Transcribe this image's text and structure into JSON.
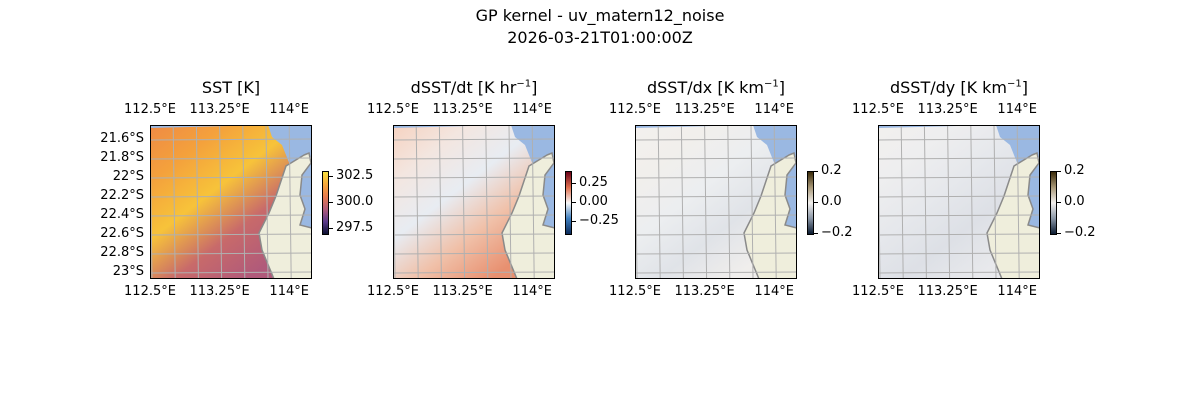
{
  "figure": {
    "title": "GP kernel - uv_matern12_noise",
    "subtitle": "2026-03-21T01:00:00Z"
  },
  "chart_data": [
    {
      "type": "heatmap",
      "title": "SST [K]",
      "title_base": "SST [K]",
      "title_sup": "",
      "title_end": "",
      "xticks": [
        "112.5°E",
        "113.25°E",
        "114°E"
      ],
      "xtick_values": [
        112.5,
        113.25,
        114
      ],
      "yticks": [
        "21.6°S",
        "21.8°S",
        "22°S",
        "22.2°S",
        "22.4°S",
        "22.6°S",
        "22.8°S",
        "23°S"
      ],
      "ytick_values": [
        -21.6,
        -21.8,
        -22,
        -22.2,
        -22.4,
        -22.6,
        -22.8,
        -23
      ],
      "colorbar": {
        "ticks": [
          "302.5",
          "300.0",
          "297.5"
        ],
        "tick_values": [
          302.5,
          300,
          297.5
        ],
        "range": [
          297,
          303
        ],
        "colors": [
          "#0b1030",
          "#5b3a8a",
          "#b05a7a",
          "#e77a4e",
          "#f7a83b",
          "#f8e040"
        ]
      },
      "field_colors": [
        "#ee8a45",
        "#f4a13c",
        "#f7c33a",
        "#c86a6a",
        "#b05a7a"
      ]
    },
    {
      "type": "heatmap",
      "title": "dSST/dt [K hr-1]",
      "title_base": "dSST/dt [K hr",
      "title_sup": "−1",
      "title_end": "]",
      "xticks": [
        "112.5°E",
        "113.25°E",
        "114°E"
      ],
      "xtick_values": [
        112.5,
        113.25,
        114
      ],
      "yticks": [],
      "colorbar": {
        "ticks": [
          "0.25",
          "0.00",
          "−0.25"
        ],
        "tick_values": [
          0.25,
          0,
          -0.25
        ],
        "range": [
          -0.4,
          0.4
        ],
        "colors": [
          "#0a2a5a",
          "#3f7fbf",
          "#f7f7f7",
          "#e0704f",
          "#6a0018"
        ]
      },
      "field_colors": [
        "#f6d2c0",
        "#f3e6e0",
        "#e8ecf2",
        "#f0c0a8",
        "#e89070"
      ]
    },
    {
      "type": "heatmap",
      "title": "dSST/dx [K km-1]",
      "title_base": "dSST/dx [K km",
      "title_sup": "−1",
      "title_end": "]",
      "xticks": [
        "112.5°E",
        "113.25°E",
        "114°E"
      ],
      "xtick_values": [
        112.5,
        113.25,
        114
      ],
      "yticks": [],
      "colorbar": {
        "ticks": [
          "0.2",
          "0.0",
          "−0.2"
        ],
        "tick_values": [
          0.2,
          0,
          -0.2
        ],
        "range": [
          -0.2,
          0.2
        ],
        "colors": [
          "#0a1a30",
          "#8a96a6",
          "#f2f0ee",
          "#a89878",
          "#3a2a08"
        ]
      },
      "field_colors": [
        "#f3f0ee",
        "#f1efec",
        "#eceef0",
        "#e0e3e8",
        "#f0eeec"
      ]
    },
    {
      "type": "heatmap",
      "title": "dSST/dy [K km-1]",
      "title_base": "dSST/dy [K km",
      "title_sup": "−1",
      "title_end": "]",
      "xticks": [
        "112.5°E",
        "113.25°E",
        "114°E"
      ],
      "xtick_values": [
        112.5,
        113.25,
        114
      ],
      "yticks": [],
      "colorbar": {
        "ticks": [
          "0.2",
          "0.0",
          "−0.2"
        ],
        "tick_values": [
          0.2,
          0,
          -0.2
        ],
        "range": [
          -0.2,
          0.2
        ],
        "colors": [
          "#0a1a30",
          "#8a96a6",
          "#f2f0ee",
          "#a89878",
          "#3a2a08"
        ]
      },
      "field_colors": [
        "#f2f0ee",
        "#eeeeef",
        "#e6e8ec",
        "#dde0e6",
        "#e8e9ec"
      ]
    }
  ],
  "colors": {
    "ocean": "#9ab8e2",
    "land": "#efeedc",
    "coast": "#8a8a8a",
    "grid": "#b0b0b0"
  }
}
